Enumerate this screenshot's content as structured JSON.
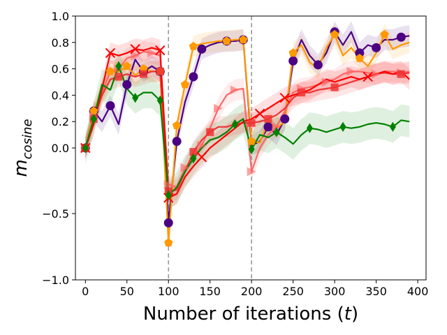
{
  "chart_data": {
    "type": "line",
    "title": "",
    "xlabel": "Number of iterations (t)",
    "ylabel_main": "m",
    "ylabel_sub": "cosine",
    "xlim": [
      -12,
      410
    ],
    "ylim": [
      -1.0,
      1.0
    ],
    "y_scale": "symlog-like (compressed below 0)",
    "xticks": [
      0,
      50,
      100,
      150,
      200,
      250,
      300,
      350,
      400
    ],
    "yticks": [
      -1.0,
      -0.5,
      0.0,
      0.2,
      0.4,
      0.6,
      0.8,
      1.0
    ],
    "ytick_labels": [
      "−1.0",
      "−0.5",
      "0.0",
      "0.2",
      "0.4",
      "0.6",
      "0.8",
      "1.0"
    ],
    "vlines": [
      100,
      200
    ],
    "grid": false,
    "legend": "none",
    "series": [
      {
        "color": "#4b0082",
        "marker": "circle",
        "band": true,
        "x": [
          0,
          10,
          20,
          30,
          40,
          50,
          60,
          70,
          80,
          90,
          100,
          110,
          120,
          130,
          140,
          150,
          160,
          170,
          180,
          190,
          200,
          210,
          220,
          230,
          240,
          250,
          260,
          270,
          280,
          290,
          300,
          310,
          320,
          330,
          340,
          350,
          360,
          370,
          380,
          390
        ],
        "y": [
          0,
          0.28,
          0.2,
          0.32,
          0.18,
          0.48,
          0.67,
          0.58,
          0.62,
          0.58,
          -0.57,
          0.05,
          0.35,
          0.54,
          0.75,
          0.78,
          0.8,
          0.81,
          0.81,
          0.82,
          0.02,
          0.05,
          0.16,
          0.1,
          0.22,
          0.66,
          0.82,
          0.7,
          0.63,
          0.72,
          0.88,
          0.78,
          0.88,
          0.72,
          0.78,
          0.76,
          0.82,
          0.82,
          0.84,
          0.85
        ],
        "marker_x": [
          0,
          10,
          30,
          50,
          70,
          90,
          100,
          110,
          130,
          140,
          170,
          190,
          220,
          240,
          250,
          280,
          300,
          330,
          350,
          380
        ]
      },
      {
        "color": "#ff9900",
        "marker": "pentagon",
        "band": true,
        "x": [
          0,
          10,
          20,
          30,
          40,
          50,
          60,
          70,
          80,
          90,
          100,
          110,
          120,
          130,
          140,
          150,
          160,
          170,
          180,
          190,
          200,
          210,
          220,
          230,
          240,
          250,
          260,
          270,
          280,
          290,
          300,
          310,
          320,
          330,
          340,
          350,
          360,
          370,
          380,
          390
        ],
        "y": [
          0,
          0.28,
          0.42,
          0.58,
          0.58,
          0.62,
          0.55,
          0.6,
          0.58,
          0.58,
          -0.72,
          0.17,
          0.48,
          0.77,
          0.79,
          0.8,
          0.81,
          0.81,
          0.82,
          0.82,
          0.05,
          0.04,
          0.2,
          0.15,
          0.2,
          0.72,
          0.78,
          0.65,
          0.6,
          0.76,
          0.86,
          0.7,
          0.76,
          0.68,
          0.62,
          0.72,
          0.86,
          0.75,
          0.78,
          0.8
        ],
        "marker_x": [
          0,
          10,
          30,
          50,
          70,
          90,
          100,
          110,
          120,
          130,
          170,
          190,
          200,
          250,
          300,
          330,
          360
        ]
      },
      {
        "color": "#ff6666",
        "marker": "triangle-right",
        "band": true,
        "x": [
          0,
          10,
          20,
          30,
          40,
          50,
          60,
          70,
          80,
          90,
          100,
          110,
          120,
          130,
          140,
          150,
          160,
          170,
          180,
          190,
          200,
          210,
          220,
          230,
          240,
          250,
          260,
          270,
          280,
          290,
          300,
          310,
          320,
          330,
          340,
          350,
          360,
          370,
          380,
          390
        ],
        "y": [
          0,
          0.24,
          0.42,
          0.58,
          0.6,
          0.68,
          0.7,
          0.73,
          0.72,
          0.7,
          -0.28,
          -0.3,
          -0.15,
          -0.08,
          0.02,
          0.15,
          0.3,
          0.4,
          0.44,
          0.45,
          -0.18,
          0.0,
          0.1,
          0.16,
          0.28,
          0.42,
          0.45,
          0.46,
          0.48,
          0.5,
          0.52,
          0.56,
          0.58,
          0.58,
          0.57,
          0.56,
          0.58,
          0.58,
          0.57,
          0.58
        ],
        "marker_x": [
          0,
          10,
          40,
          60,
          80,
          100,
          120,
          140,
          160,
          180,
          200,
          230,
          260,
          290,
          320,
          350,
          380
        ]
      },
      {
        "color": "#ee3333",
        "marker": "square",
        "band": true,
        "x": [
          0,
          10,
          20,
          30,
          40,
          50,
          60,
          70,
          80,
          90,
          100,
          110,
          120,
          130,
          140,
          150,
          160,
          170,
          180,
          190,
          200,
          210,
          220,
          230,
          240,
          250,
          260,
          270,
          280,
          290,
          300,
          310,
          320,
          330,
          340,
          350,
          360,
          370,
          380,
          390
        ],
        "y": [
          0,
          0.22,
          0.4,
          0.52,
          0.54,
          0.56,
          0.54,
          0.56,
          0.58,
          0.58,
          -0.33,
          -0.32,
          -0.18,
          -0.03,
          0.06,
          0.12,
          0.16,
          0.16,
          0.18,
          0.19,
          0.19,
          0.2,
          0.22,
          0.25,
          0.3,
          0.38,
          0.42,
          0.42,
          0.44,
          0.45,
          0.46,
          0.48,
          0.5,
          0.52,
          0.54,
          0.56,
          0.57,
          0.56,
          0.56,
          0.57
        ],
        "marker_x": [
          0,
          10,
          40,
          70,
          90,
          100,
          130,
          150,
          200,
          220,
          260,
          300,
          380
        ]
      },
      {
        "color": "#ff0000",
        "marker": "x",
        "band": true,
        "x": [
          0,
          10,
          20,
          30,
          40,
          50,
          60,
          70,
          80,
          90,
          100,
          110,
          120,
          130,
          140,
          150,
          160,
          170,
          180,
          190,
          200,
          210,
          220,
          230,
          240,
          250,
          260,
          270,
          280,
          290,
          300,
          310,
          320,
          330,
          340,
          350,
          360,
          370,
          380,
          390
        ],
        "y": [
          0,
          0.18,
          0.45,
          0.72,
          0.7,
          0.72,
          0.75,
          0.74,
          0.76,
          0.74,
          -0.38,
          -0.35,
          -0.22,
          -0.14,
          -0.07,
          0.0,
          0.05,
          0.1,
          0.15,
          0.2,
          0.22,
          0.26,
          0.3,
          0.34,
          0.38,
          0.4,
          0.42,
          0.44,
          0.48,
          0.52,
          0.5,
          0.52,
          0.54,
          0.52,
          0.54,
          0.56,
          0.58,
          0.56,
          0.58,
          0.52
        ],
        "marker_x": [
          0,
          30,
          60,
          90,
          100,
          140,
          210,
          240,
          340
        ]
      },
      {
        "color": "#008000",
        "marker": "diamond",
        "band": true,
        "x": [
          0,
          10,
          20,
          30,
          40,
          50,
          60,
          70,
          80,
          90,
          100,
          110,
          120,
          130,
          140,
          150,
          160,
          170,
          180,
          190,
          200,
          210,
          220,
          230,
          240,
          250,
          260,
          270,
          280,
          290,
          300,
          310,
          320,
          330,
          340,
          350,
          360,
          370,
          380,
          390
        ],
        "y": [
          0,
          0.22,
          0.48,
          0.44,
          0.62,
          0.45,
          0.38,
          0.42,
          0.42,
          0.36,
          -0.36,
          -0.3,
          -0.18,
          -0.08,
          0.0,
          0.06,
          0.08,
          0.12,
          0.18,
          0.22,
          -0.01,
          0.1,
          0.08,
          0.12,
          0.08,
          0.03,
          0.1,
          0.15,
          0.14,
          0.12,
          0.14,
          0.16,
          0.15,
          0.16,
          0.18,
          0.19,
          0.18,
          0.16,
          0.21,
          0.2
        ],
        "marker_x": [
          0,
          10,
          40,
          60,
          90,
          100,
          130,
          180,
          200,
          230,
          270,
          310,
          370
        ]
      }
    ]
  }
}
